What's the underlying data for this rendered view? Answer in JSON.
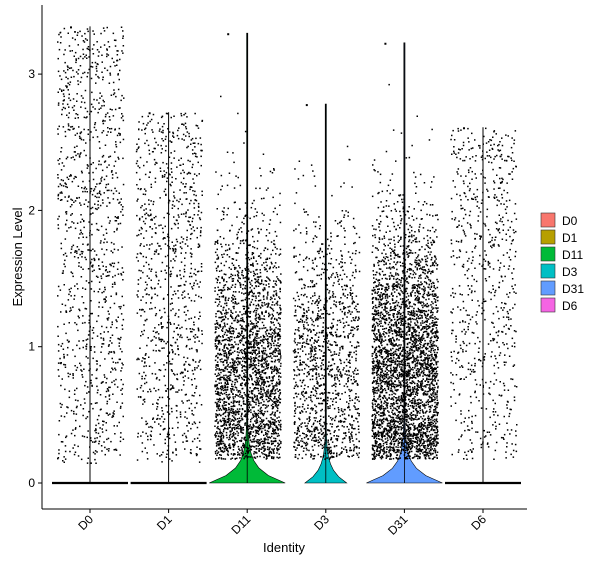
{
  "chart_data": {
    "type": "violin",
    "xlabel": "Identity",
    "ylabel": "Expression Level",
    "categories": [
      "D0",
      "D1",
      "D11",
      "D3",
      "D31",
      "D6"
    ],
    "ylim": [
      -0.18,
      3.52
    ],
    "yticks": [
      0,
      1,
      2,
      3
    ],
    "grid": false,
    "legend": {
      "position": "right",
      "entries": [
        "D0",
        "D1",
        "D11",
        "D3",
        "D31",
        "D6"
      ]
    },
    "series": [
      {
        "name": "D0",
        "color": "#F8766D",
        "max": 3.35,
        "n_expressing": 1100,
        "violin_max_width": 0.02
      },
      {
        "name": "D1",
        "color": "#B79F00",
        "max": 2.72,
        "n_expressing": 950,
        "violin_max_width": 0.02
      },
      {
        "name": "D11",
        "color": "#00BA38",
        "max": 3.3,
        "n_expressing": 2600,
        "violin_max_width": 1.0
      },
      {
        "name": "D3",
        "color": "#00BFC4",
        "max": 2.78,
        "n_expressing": 1300,
        "violin_max_width": 0.55
      },
      {
        "name": "D31",
        "color": "#619CFF",
        "max": 3.23,
        "n_expressing": 3600,
        "violin_max_width": 1.0
      },
      {
        "name": "D6",
        "color": "#F564E3",
        "max": 2.61,
        "n_expressing": 700,
        "violin_max_width": 0.02
      }
    ]
  }
}
